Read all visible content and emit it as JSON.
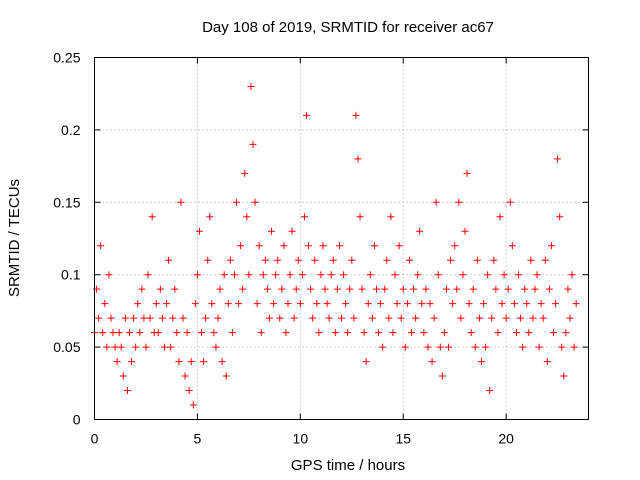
{
  "chart_data": {
    "type": "scatter",
    "title": "Day 108 of 2019, SRMTID for receiver ac67",
    "xlabel": "GPS time / hours",
    "ylabel": "SRMTID / TECUs",
    "xlim": [
      0,
      24
    ],
    "ylim": [
      0,
      0.25
    ],
    "xticks": [
      0,
      5,
      10,
      15,
      20
    ],
    "xtick_labels": [
      "0",
      "5",
      "10",
      "15",
      "20"
    ],
    "yticks": [
      0,
      0.05,
      0.1,
      0.15,
      0.2,
      0.25
    ],
    "ytick_labels": [
      "0",
      "0.05",
      "0.1",
      "0.15",
      "0.2",
      "0.25"
    ],
    "grid": true,
    "marker": "+",
    "series": [
      {
        "name": "SRMTID",
        "color": "#ff0000",
        "x_start": 0.0,
        "x_step": 0.1,
        "values": [
          0.06,
          0.09,
          0.07,
          0.12,
          0.06,
          0.08,
          0.05,
          0.1,
          0.07,
          0.06,
          0.05,
          0.04,
          0.06,
          0.05,
          0.03,
          0.07,
          0.02,
          0.06,
          0.04,
          0.07,
          0.05,
          0.08,
          0.06,
          0.09,
          0.07,
          0.05,
          0.1,
          0.07,
          0.14,
          0.06,
          0.08,
          0.06,
          0.09,
          0.07,
          0.05,
          0.08,
          0.11,
          0.05,
          0.07,
          0.09,
          0.06,
          0.04,
          0.15,
          0.07,
          0.03,
          0.06,
          0.02,
          0.04,
          0.01,
          0.08,
          0.1,
          0.13,
          0.06,
          0.04,
          0.07,
          0.11,
          0.14,
          0.08,
          0.06,
          0.05,
          0.07,
          0.09,
          0.04,
          0.1,
          0.03,
          0.08,
          0.11,
          0.06,
          0.1,
          0.15,
          0.08,
          0.12,
          0.09,
          0.17,
          0.14,
          0.1,
          0.23,
          0.19,
          0.15,
          0.08,
          0.12,
          0.06,
          0.1,
          0.11,
          0.09,
          0.07,
          0.13,
          0.08,
          0.1,
          0.11,
          0.07,
          0.09,
          0.12,
          0.06,
          0.08,
          0.1,
          0.13,
          0.07,
          0.09,
          0.11,
          0.08,
          0.1,
          0.14,
          0.21,
          0.12,
          0.09,
          0.07,
          0.11,
          0.08,
          0.06,
          0.1,
          0.12,
          0.09,
          0.08,
          0.07,
          0.1,
          0.11,
          0.06,
          0.09,
          0.12,
          0.07,
          0.1,
          0.08,
          0.06,
          0.09,
          0.11,
          0.07,
          0.21,
          0.18,
          0.14,
          0.09,
          0.06,
          0.04,
          0.08,
          0.1,
          0.07,
          0.12,
          0.09,
          0.06,
          0.08,
          0.05,
          0.09,
          0.11,
          0.07,
          0.14,
          0.06,
          0.1,
          0.08,
          0.12,
          0.07,
          0.09,
          0.05,
          0.08,
          0.11,
          0.06,
          0.09,
          0.07,
          0.1,
          0.13,
          0.08,
          0.06,
          0.09,
          0.05,
          0.08,
          0.04,
          0.07,
          0.15,
          0.1,
          0.05,
          0.03,
          0.06,
          0.09,
          0.05,
          0.11,
          0.08,
          0.12,
          0.09,
          0.15,
          0.07,
          0.1,
          0.13,
          0.17,
          0.08,
          0.06,
          0.09,
          0.05,
          0.11,
          0.07,
          0.04,
          0.08,
          0.05,
          0.1,
          0.02,
          0.07,
          0.11,
          0.09,
          0.06,
          0.14,
          0.08,
          0.1,
          0.07,
          0.09,
          0.15,
          0.12,
          0.08,
          0.06,
          0.1,
          0.07,
          0.05,
          0.09,
          0.08,
          0.06,
          0.11,
          0.07,
          0.09,
          0.1,
          0.05,
          0.08,
          0.07,
          0.11,
          0.04,
          0.09,
          0.12,
          0.06,
          0.08,
          0.18,
          0.14,
          0.05,
          0.03,
          0.06,
          0.09,
          0.07,
          0.1,
          0.05,
          0.08
        ]
      }
    ]
  }
}
